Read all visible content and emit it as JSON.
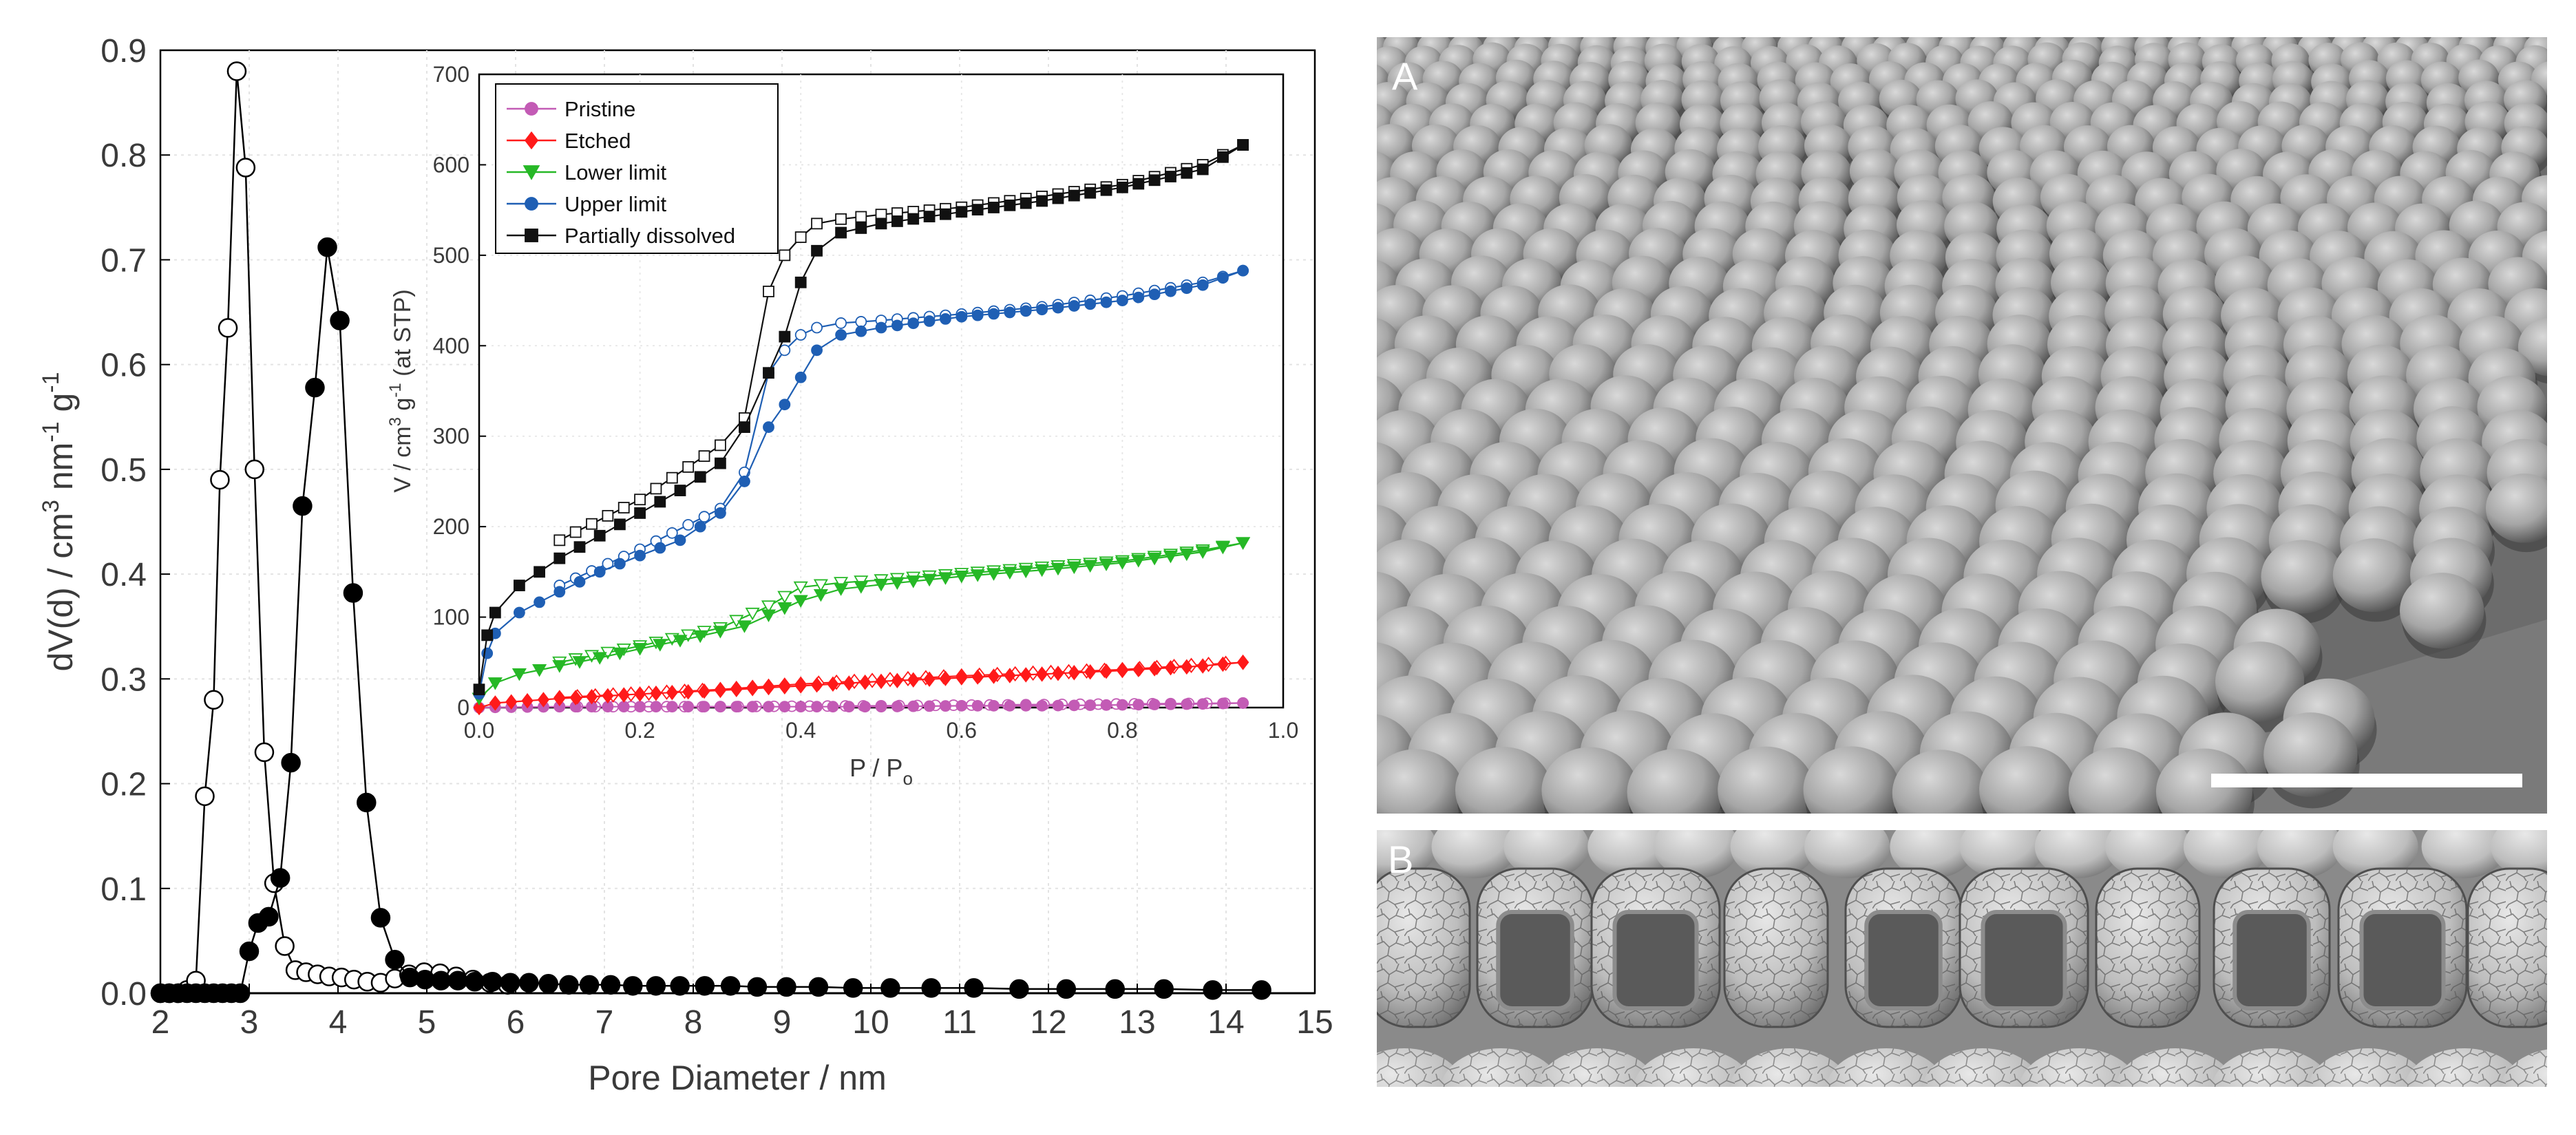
{
  "chart_data": [
    {
      "type": "line",
      "title": "",
      "xlabel": "Pore Diameter / nm",
      "ylabel": "dV(d) / cm³ nm⁻¹ g⁻¹",
      "ylabel_parts": {
        "prefix": "dV(d) / cm",
        "sup1": "3",
        "mid": " nm",
        "sup2": "-1",
        "mid2": " g",
        "sup3": "-1"
      },
      "xlim": [
        2,
        15
      ],
      "ylim": [
        0,
        0.9
      ],
      "xticks": [
        2,
        3,
        4,
        5,
        6,
        7,
        8,
        9,
        10,
        11,
        12,
        13,
        14,
        15
      ],
      "yticks": [
        0.0,
        0.1,
        0.2,
        0.3,
        0.4,
        0.5,
        0.6,
        0.7,
        0.8,
        0.9
      ],
      "ytick_labels": [
        "0.0",
        "0.1",
        "0.2",
        "0.3",
        "0.4",
        "0.5",
        "0.6",
        "0.7",
        "0.8",
        "0.9"
      ],
      "grid": true,
      "series": [
        {
          "name": "open markers",
          "marker": "open-circle",
          "x": [
            2.0,
            2.1,
            2.2,
            2.3,
            2.4,
            2.5,
            2.6,
            2.67,
            2.76,
            2.86,
            2.96,
            3.06,
            3.17,
            3.28,
            3.4,
            3.52,
            3.64,
            3.77,
            3.9,
            4.04,
            4.18,
            4.33,
            4.48,
            4.64,
            4.8,
            4.97,
            5.15,
            5.33,
            5.52,
            5.71,
            5.91
          ],
          "y": [
            0.0,
            0.0,
            0.0,
            0.003,
            0.012,
            0.188,
            0.28,
            0.49,
            0.635,
            0.88,
            0.788,
            0.5,
            0.23,
            0.105,
            0.045,
            0.022,
            0.02,
            0.018,
            0.016,
            0.015,
            0.013,
            0.011,
            0.01,
            0.014,
            0.018,
            0.02,
            0.019,
            0.016,
            0.013,
            0.01,
            0.008
          ]
        },
        {
          "name": "filled markers",
          "marker": "filled-circle",
          "x": [
            2.0,
            2.1,
            2.2,
            2.3,
            2.4,
            2.5,
            2.6,
            2.7,
            2.8,
            2.9,
            3.0,
            3.1,
            3.22,
            3.35,
            3.47,
            3.6,
            3.74,
            3.88,
            4.02,
            4.17,
            4.32,
            4.48,
            4.64,
            4.81,
            4.98,
            5.16,
            5.35,
            5.54,
            5.74,
            5.94,
            6.15,
            6.37,
            6.6,
            6.83,
            7.07,
            7.32,
            7.58,
            7.85,
            8.13,
            8.42,
            8.72,
            9.05,
            9.41,
            9.8,
            10.22,
            10.68,
            11.16,
            11.67,
            12.2,
            12.75,
            13.3,
            13.85,
            14.4
          ],
          "y": [
            0.0,
            0.0,
            0.0,
            0.0,
            0.0,
            0.0,
            0.0,
            0.0,
            0.0,
            0.0,
            0.04,
            0.067,
            0.073,
            0.11,
            0.22,
            0.465,
            0.578,
            0.712,
            0.642,
            0.382,
            0.182,
            0.072,
            0.032,
            0.015,
            0.013,
            0.012,
            0.012,
            0.011,
            0.011,
            0.01,
            0.01,
            0.009,
            0.008,
            0.008,
            0.008,
            0.007,
            0.007,
            0.007,
            0.007,
            0.007,
            0.006,
            0.006,
            0.006,
            0.005,
            0.005,
            0.005,
            0.005,
            0.004,
            0.004,
            0.004,
            0.004,
            0.003,
            0.003
          ]
        }
      ]
    },
    {
      "type": "line",
      "title": "",
      "subtitle": "inset",
      "xlabel": "P / Po",
      "xlabel_parts": {
        "main": "P / P",
        "sub": "o"
      },
      "ylabel": "V / cm³ g⁻¹ (at STP)",
      "ylabel_parts": {
        "prefix": "V / cm",
        "sup1": "3",
        "mid": " g",
        "sup2": "-1",
        "suffix": " (at STP)"
      },
      "xlim": [
        0,
        1.0
      ],
      "ylim": [
        0,
        700
      ],
      "xticks": [
        0,
        0.2,
        0.4,
        0.6,
        0.8,
        1.0
      ],
      "xtick_labels": [
        "0.0",
        "0.2",
        "0.4",
        "0.6",
        "0.8",
        "1.0"
      ],
      "yticks": [
        0,
        100,
        200,
        300,
        400,
        500,
        600,
        700
      ],
      "ytick_labels": [
        "0",
        "100",
        "200",
        "300",
        "400",
        "500",
        "600",
        "700"
      ],
      "grid": true,
      "legend_position": "top-left",
      "series": [
        {
          "name": "Pristine",
          "color": "#c35bb5",
          "marker": "circle",
          "adsorption": {
            "x": [
              0.0,
              0.1,
              0.2,
              0.3,
              0.4,
              0.5,
              0.6,
              0.7,
              0.8,
              0.9,
              0.95
            ],
            "y": [
              0,
              1,
              1,
              1,
              1,
              1,
              2,
              2,
              3,
              4,
              5
            ]
          },
          "desorption": {
            "x": [
              0.95,
              0.5,
              0.3,
              0.1
            ],
            "y": [
              5,
              2,
              1,
              1
            ]
          }
        },
        {
          "name": "Etched",
          "color": "#ff1a1a",
          "marker": "diamond",
          "adsorption": {
            "x": [
              0.0,
              0.02,
              0.1,
              0.2,
              0.3,
              0.4,
              0.5,
              0.6,
              0.7,
              0.8,
              0.9,
              0.95
            ],
            "y": [
              0,
              5,
              10,
              15,
              19,
              24,
              29,
              33,
              37,
              41,
              46,
              50
            ]
          },
          "desorption": {
            "x": [
              0.95,
              0.8,
              0.6,
              0.4,
              0.3,
              0.1
            ],
            "y": [
              50,
              42,
              35,
              26,
              20,
              11
            ]
          }
        },
        {
          "name": "Lower limit",
          "color": "#26b826",
          "marker": "triangle-down",
          "adsorption": {
            "x": [
              0.0,
              0.02,
              0.05,
              0.1,
              0.15,
              0.2,
              0.25,
              0.3,
              0.33,
              0.36,
              0.4,
              0.45,
              0.5,
              0.6,
              0.7,
              0.8,
              0.9,
              0.95
            ],
            "y": [
              10,
              27,
              37,
              46,
              55,
              65,
              74,
              84,
              90,
              102,
              118,
              131,
              136,
              145,
              152,
              160,
              172,
              182
            ]
          },
          "desorption": {
            "x": [
              0.95,
              0.9,
              0.8,
              0.7,
              0.6,
              0.5,
              0.45,
              0.4,
              0.36,
              0.3,
              0.2,
              0.1
            ],
            "y": [
              182,
              174,
              162,
              155,
              148,
              141,
              138,
              133,
              112,
              88,
              68,
              50
            ]
          }
        },
        {
          "name": "Upper limit",
          "color": "#1f5fb4",
          "marker": "circle",
          "adsorption": {
            "x": [
              0.0,
              0.01,
              0.02,
              0.05,
              0.1,
              0.15,
              0.2,
              0.25,
              0.3,
              0.33,
              0.36,
              0.38,
              0.4,
              0.42,
              0.45,
              0.5,
              0.6,
              0.7,
              0.8,
              0.9,
              0.95
            ],
            "y": [
              15,
              60,
              82,
              105,
              128,
              150,
              168,
              185,
              215,
              250,
              310,
              335,
              365,
              395,
              412,
              420,
              432,
              440,
              450,
              467,
              483
            ]
          },
          "desorption": {
            "x": [
              0.95,
              0.9,
              0.8,
              0.7,
              0.6,
              0.5,
              0.45,
              0.42,
              0.4,
              0.38,
              0.36,
              0.33,
              0.3,
              0.2,
              0.1
            ],
            "y": [
              483,
              470,
              455,
              443,
              435,
              428,
              425,
              420,
              412,
              395,
              370,
              260,
              220,
              175,
              135
            ]
          }
        },
        {
          "name": "Partially dissolved",
          "color": "#111111",
          "marker": "square",
          "adsorption": {
            "x": [
              0.0,
              0.01,
              0.02,
              0.05,
              0.1,
              0.15,
              0.2,
              0.25,
              0.3,
              0.33,
              0.36,
              0.38,
              0.4,
              0.42,
              0.45,
              0.5,
              0.6,
              0.7,
              0.8,
              0.9,
              0.95
            ],
            "y": [
              20,
              80,
              105,
              135,
              165,
              190,
              215,
              240,
              270,
              310,
              370,
              410,
              470,
              505,
              525,
              535,
              548,
              560,
              575,
              595,
              622
            ]
          },
          "desorption": {
            "x": [
              0.95,
              0.9,
              0.8,
              0.7,
              0.6,
              0.5,
              0.45,
              0.42,
              0.4,
              0.38,
              0.36,
              0.33,
              0.3,
              0.2,
              0.1
            ],
            "y": [
              622,
              600,
              578,
              565,
              553,
              545,
              540,
              535,
              520,
              500,
              460,
              320,
              290,
              230,
              185
            ]
          }
        }
      ]
    }
  ],
  "sem_panels": [
    {
      "label": "A",
      "description_name": "sem-image-top",
      "scale_bar": true
    },
    {
      "label": "B",
      "description_name": "sem-image-bottom",
      "scale_bar": false
    }
  ]
}
